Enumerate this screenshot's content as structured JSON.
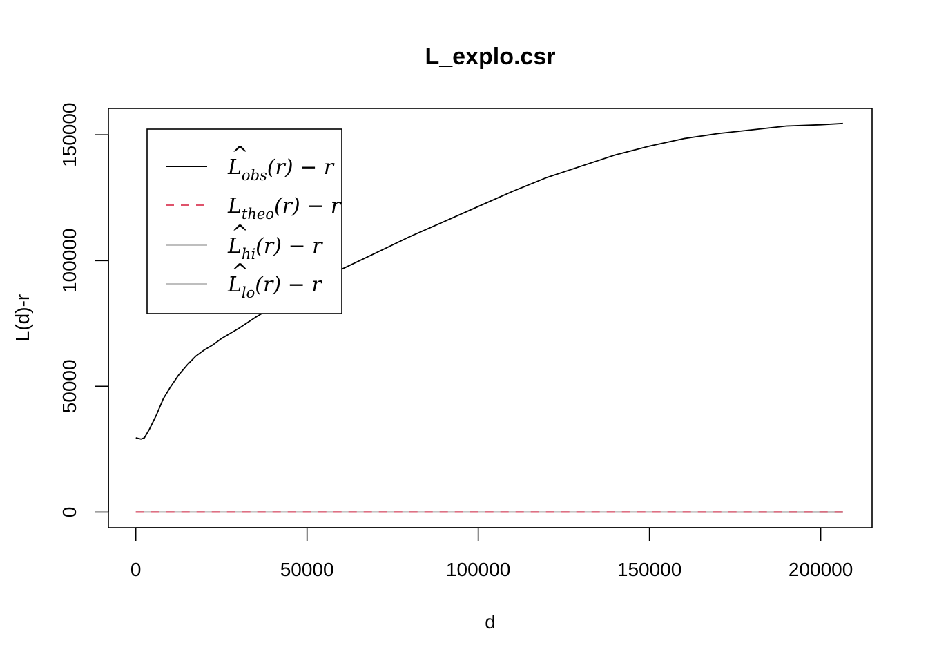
{
  "chart_data": {
    "type": "line",
    "title": "L_explo.csr",
    "xlabel": "d",
    "ylabel": "L(d)-r",
    "xlim": [
      -8000,
      215000
    ],
    "ylim": [
      -6200,
      160500
    ],
    "xticks": [
      0,
      50000,
      100000,
      150000,
      200000
    ],
    "yticks": [
      0,
      50000,
      100000,
      150000
    ],
    "xtick_labels": [
      "0",
      "50000",
      "100000",
      "150000",
      "200000"
    ],
    "ytick_labels": [
      "0",
      "50000",
      "100000",
      "150000"
    ],
    "legend_position": "top-left",
    "series": [
      {
        "key": "obs",
        "legend": {
          "base": "L",
          "hat": "^",
          "sub": "obs",
          "rest": "(r) − r"
        },
        "color": "#000000",
        "dash": "solid",
        "x": [
          0,
          1500,
          2500,
          4000,
          6000,
          8000,
          10000,
          12500,
          15000,
          17500,
          20000,
          22500,
          25000,
          27500,
          30000,
          35000,
          40000,
          45000,
          50000,
          55000,
          60000,
          70000,
          80000,
          90000,
          100000,
          110000,
          120000,
          130000,
          140000,
          150000,
          160000,
          170000,
          180000,
          190000,
          200000,
          206500
        ],
        "y": [
          29500,
          29000,
          29500,
          33000,
          38500,
          45000,
          49500,
          54500,
          58500,
          62000,
          64500,
          66500,
          69000,
          71000,
          73000,
          77500,
          81500,
          85500,
          89000,
          92500,
          96500,
          103000,
          109500,
          115500,
          121500,
          127500,
          133000,
          137500,
          142000,
          145500,
          148500,
          150500,
          152000,
          153500,
          154000,
          154500
        ]
      },
      {
        "key": "theo",
        "legend": {
          "base": "L",
          "hat": "",
          "sub": "theo",
          "rest": "(r) − r"
        },
        "color": "#df536b",
        "dash": "dashed",
        "x": [
          0,
          206500
        ],
        "y": [
          0,
          0
        ]
      },
      {
        "key": "hi",
        "legend": {
          "base": "L",
          "hat": "^",
          "sub": "hi",
          "rest": "(r) − r"
        },
        "color": "#bebebe",
        "dash": "solid",
        "x": [
          0,
          150000,
          206500
        ],
        "y": [
          0,
          0,
          100
        ]
      },
      {
        "key": "lo",
        "legend": {
          "base": "L",
          "hat": "^",
          "sub": "lo",
          "rest": "(r) − r"
        },
        "color": "#bebebe",
        "dash": "solid",
        "x": [
          0,
          150000,
          206500
        ],
        "y": [
          0,
          0,
          -100
        ]
      }
    ]
  }
}
